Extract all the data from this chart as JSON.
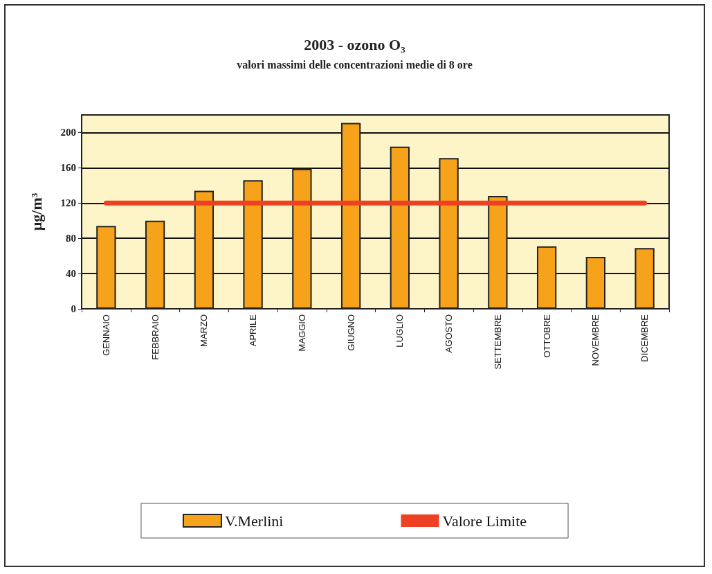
{
  "chart_data": {
    "type": "bar",
    "title": "2003 - ozono O₃",
    "subtitle": "valori massimi delle concentrazioni medie di 8 ore",
    "ylabel": "µg/m³",
    "categories": [
      "GENNAIO",
      "FEBBRAIO",
      "MARZO",
      "APRILE",
      "MAGGIO",
      "GIUGNO",
      "LUGLIO",
      "AGOSTO",
      "SETTEMBRE",
      "OTTOBRE",
      "NOVEMBRE",
      "DICEMBRE"
    ],
    "series": [
      {
        "name": "V.Merlini",
        "color": "#f7a21b",
        "values": [
          94,
          100,
          134,
          146,
          159,
          211,
          184,
          171,
          128,
          71,
          59,
          69
        ]
      },
      {
        "name": "Valore Limite",
        "type": "line",
        "color": "#ee4023",
        "values": [
          120,
          120,
          120,
          120,
          120,
          120,
          120,
          120,
          120,
          120,
          120,
          120
        ]
      }
    ],
    "ylim": [
      0,
      220
    ],
    "yticks": [
      0,
      40,
      80,
      120,
      160,
      200
    ],
    "grid": "y",
    "legend": "bottom",
    "marker": "none"
  }
}
